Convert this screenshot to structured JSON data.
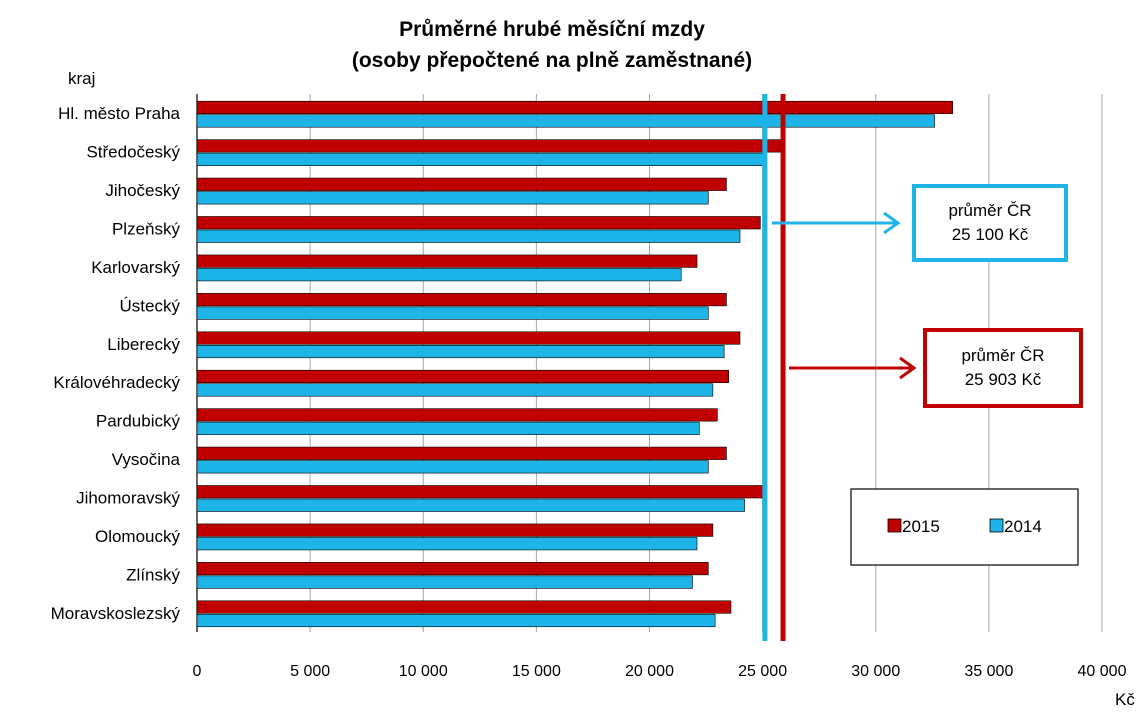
{
  "chart_data": {
    "type": "bar",
    "orientation": "horizontal",
    "title": [
      "Průměrné hrubé měsíční mzdy",
      "(osoby přepočtené  na plně zaměstnané)"
    ],
    "ylabel": "kraj",
    "xlabel": "Kč",
    "xlim": [
      0,
      40000
    ],
    "xticks": [
      "0",
      "5 000",
      "10 000",
      "15 000",
      "20 000",
      "25 000",
      "30 000",
      "35 000",
      "40 000"
    ],
    "grid": true,
    "legend_position": "lower-right",
    "categories": [
      "Hl. město Praha",
      "Středočeský",
      "Jihočeský",
      "Plzeňský",
      "Karlovarský",
      "Ústecký",
      "Liberecký",
      "Královéhradecký",
      "Pardubický",
      "Vysočina",
      "Jihomoravský",
      "Olomoucký",
      "Zlínský",
      "Moravskoslezský"
    ],
    "series": [
      {
        "name": "2015",
        "color": "#C00000",
        "values": [
          33400,
          25800,
          23400,
          24900,
          22100,
          23400,
          24000,
          23500,
          23000,
          23400,
          25100,
          22800,
          22600,
          23600
        ]
      },
      {
        "name": "2014",
        "color": "#1EB4E8",
        "values": [
          32600,
          25100,
          22600,
          24000,
          21400,
          22600,
          23300,
          22800,
          22200,
          22600,
          24200,
          22100,
          21900,
          22900
        ]
      }
    ],
    "reference_lines": [
      {
        "series": "2014",
        "value": 25100,
        "color": "#1EB4E8",
        "label_line1": "průměr ČR",
        "label_line2": "25 100 Kč"
      },
      {
        "series": "2015",
        "value": 25903,
        "color": "#C00000",
        "label_line1": "průměr ČR",
        "label_line2": "25 903 Kč"
      }
    ]
  }
}
